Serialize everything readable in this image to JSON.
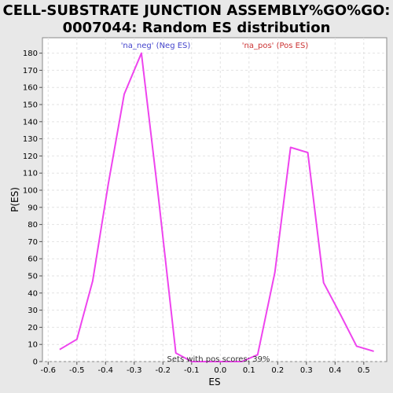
{
  "chart_data": {
    "type": "line",
    "title_line1": "CELL-SUBSTRATE JUNCTION ASSEMBLY%GO%GO:",
    "title_line2": "0007044: Random ES distribution",
    "xlabel": "ES",
    "ylabel": "P(ES)",
    "xlim": [
      -0.62,
      0.58
    ],
    "ylim": [
      0,
      189
    ],
    "xticks": [
      "-0.6",
      "-0.5",
      "-0.4",
      "-0.3",
      "-0.2",
      "-0.1",
      "0.0",
      "0.1",
      "0.2",
      "0.3",
      "0.4",
      "0.5"
    ],
    "yticks": [
      "0",
      "10",
      "20",
      "30",
      "40",
      "50",
      "60",
      "70",
      "80",
      "90",
      "100",
      "110",
      "120",
      "130",
      "140",
      "150",
      "160",
      "170",
      "180"
    ],
    "grid": true,
    "legend": [
      {
        "label": "'na_neg' (Neg ES)",
        "color": "#4444cc"
      },
      {
        "label": "'na_pos' (Pos ES)",
        "color": "#cc3333"
      }
    ],
    "annotation": "Sets with pos scores: 39%",
    "line_color": "#ee44ee",
    "series": [
      {
        "x": [
          -0.56,
          -0.5,
          -0.445,
          -0.39,
          -0.335,
          -0.275,
          -0.215,
          -0.155,
          -0.1,
          -0.04,
          0.015,
          0.075,
          0.13,
          0.19,
          0.245,
          0.305,
          0.36,
          0.42,
          0.475,
          0.535
        ],
        "values": [
          7,
          13,
          47,
          104,
          156,
          180,
          95,
          5,
          0,
          0,
          0,
          0,
          4,
          52,
          125,
          122,
          46,
          27,
          9,
          6
        ]
      }
    ]
  }
}
